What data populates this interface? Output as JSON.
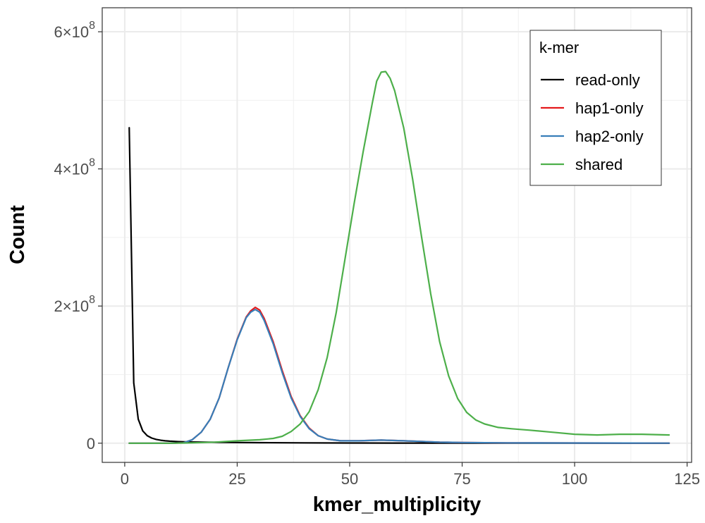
{
  "chart_data": {
    "type": "line",
    "xlabel": "kmer_multiplicity",
    "ylabel": "Count",
    "xlim": [
      -5,
      126
    ],
    "ylim": [
      -28000000,
      635000000
    ],
    "x_ticks": [
      0,
      25,
      50,
      75,
      100,
      125
    ],
    "x_tick_labels": [
      "0",
      "25",
      "50",
      "75",
      "100",
      "125"
    ],
    "y_ticks": [
      0,
      200000000,
      400000000,
      600000000
    ],
    "y_tick_labels": [
      {
        "mantissa": "0",
        "exponent": ""
      },
      {
        "mantissa": "2×10",
        "exponent": "8"
      },
      {
        "mantissa": "4×10",
        "exponent": "8"
      },
      {
        "mantissa": "6×10",
        "exponent": "8"
      }
    ],
    "grid": true,
    "legend": {
      "title": "k-mer",
      "position": "top-right",
      "entries": [
        "read-only",
        "hap1-only",
        "hap2-only",
        "shared"
      ]
    },
    "series": [
      {
        "name": "read-only",
        "color": "#000000",
        "points": [
          [
            1,
            460000000
          ],
          [
            2,
            88000000
          ],
          [
            3,
            35000000
          ],
          [
            4,
            18000000
          ],
          [
            5,
            11000000
          ],
          [
            6,
            7500000
          ],
          [
            7,
            5500000
          ],
          [
            8,
            4300000
          ],
          [
            9,
            3500000
          ],
          [
            10,
            2900000
          ],
          [
            12,
            2200000
          ],
          [
            15,
            1700000
          ],
          [
            20,
            1300000
          ],
          [
            25,
            1000000
          ],
          [
            30,
            800000
          ],
          [
            40,
            500000
          ],
          [
            50,
            300000
          ],
          [
            60,
            200000
          ],
          [
            80,
            100000
          ],
          [
            100,
            50000
          ],
          [
            121,
            0
          ]
        ]
      },
      {
        "name": "hap1-only",
        "color": "#e41a1c",
        "points": [
          [
            1,
            0
          ],
          [
            10,
            0
          ],
          [
            13,
            500000
          ],
          [
            15,
            5000000
          ],
          [
            17,
            16000000
          ],
          [
            19,
            35000000
          ],
          [
            21,
            66000000
          ],
          [
            23,
            110000000
          ],
          [
            25,
            152000000
          ],
          [
            27,
            184000000
          ],
          [
            28,
            193000000
          ],
          [
            29,
            198000000
          ],
          [
            30,
            194000000
          ],
          [
            31,
            182000000
          ],
          [
            33,
            148000000
          ],
          [
            35,
            106000000
          ],
          [
            37,
            68000000
          ],
          [
            39,
            40000000
          ],
          [
            41,
            22000000
          ],
          [
            43,
            11000000
          ],
          [
            45,
            6000000
          ],
          [
            48,
            3500000
          ],
          [
            52,
            3500000
          ],
          [
            57,
            4500000
          ],
          [
            62,
            3500000
          ],
          [
            66,
            2500000
          ],
          [
            70,
            1500000
          ],
          [
            75,
            1000000
          ],
          [
            85,
            500000
          ],
          [
            100,
            300000
          ],
          [
            121,
            100000
          ]
        ]
      },
      {
        "name": "hap2-only",
        "color": "#377eb8",
        "points": [
          [
            1,
            0
          ],
          [
            10,
            0
          ],
          [
            13,
            500000
          ],
          [
            15,
            5000000
          ],
          [
            17,
            16000000
          ],
          [
            19,
            35000000
          ],
          [
            21,
            66000000
          ],
          [
            23,
            110000000
          ],
          [
            25,
            151000000
          ],
          [
            27,
            183000000
          ],
          [
            28,
            191000000
          ],
          [
            29,
            195000000
          ],
          [
            30,
            191000000
          ],
          [
            31,
            179000000
          ],
          [
            33,
            145000000
          ],
          [
            35,
            103000000
          ],
          [
            37,
            66000000
          ],
          [
            39,
            39000000
          ],
          [
            41,
            21000000
          ],
          [
            43,
            11000000
          ],
          [
            45,
            6000000
          ],
          [
            48,
            3500000
          ],
          [
            52,
            3500000
          ],
          [
            57,
            4500000
          ],
          [
            62,
            3500000
          ],
          [
            66,
            2500000
          ],
          [
            70,
            1500000
          ],
          [
            75,
            1000000
          ],
          [
            85,
            500000
          ],
          [
            100,
            300000
          ],
          [
            121,
            100000
          ]
        ]
      },
      {
        "name": "shared",
        "color": "#4daf4a",
        "points": [
          [
            1,
            0
          ],
          [
            10,
            0
          ],
          [
            15,
            500000
          ],
          [
            20,
            1500000
          ],
          [
            25,
            3500000
          ],
          [
            30,
            5000000
          ],
          [
            33,
            7000000
          ],
          [
            35,
            10000000
          ],
          [
            37,
            17000000
          ],
          [
            39,
            28000000
          ],
          [
            41,
            46000000
          ],
          [
            43,
            78000000
          ],
          [
            45,
            125000000
          ],
          [
            47,
            190000000
          ],
          [
            49,
            270000000
          ],
          [
            51,
            350000000
          ],
          [
            53,
            425000000
          ],
          [
            55,
            495000000
          ],
          [
            56,
            528000000
          ],
          [
            57,
            541000000
          ],
          [
            58,
            542000000
          ],
          [
            59,
            532000000
          ],
          [
            60,
            514000000
          ],
          [
            62,
            460000000
          ],
          [
            64,
            385000000
          ],
          [
            66,
            300000000
          ],
          [
            68,
            218000000
          ],
          [
            70,
            148000000
          ],
          [
            72,
            98000000
          ],
          [
            74,
            65000000
          ],
          [
            76,
            45000000
          ],
          [
            78,
            34000000
          ],
          [
            80,
            28000000
          ],
          [
            83,
            23000000
          ],
          [
            86,
            21000000
          ],
          [
            90,
            19000000
          ],
          [
            95,
            16000000
          ],
          [
            100,
            13000000
          ],
          [
            105,
            12000000
          ],
          [
            110,
            13000000
          ],
          [
            115,
            13000000
          ],
          [
            121,
            12000000
          ]
        ]
      }
    ]
  }
}
